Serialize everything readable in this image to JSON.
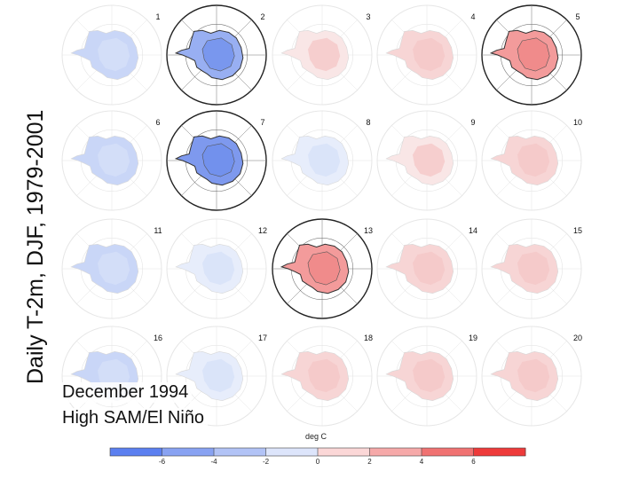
{
  "side_title": "Daily T-2m, DJF, 1979-2001",
  "caption": {
    "line1": "December 1994",
    "line2": "High SAM/El Niño"
  },
  "panels": [
    {
      "label": "1",
      "anom": -1.5,
      "highlight": false
    },
    {
      "label": "2",
      "anom": -3.5,
      "highlight": true
    },
    {
      "label": "3",
      "anom": 0.6,
      "highlight": false
    },
    {
      "label": "4",
      "anom": 1.2,
      "highlight": false
    },
    {
      "label": "5",
      "anom": 4.0,
      "highlight": true
    },
    {
      "label": "6",
      "anom": -1.4,
      "highlight": false
    },
    {
      "label": "7",
      "anom": -4.5,
      "highlight": true
    },
    {
      "label": "8",
      "anom": -0.6,
      "highlight": false
    },
    {
      "label": "9",
      "anom": 0.9,
      "highlight": false
    },
    {
      "label": "10",
      "anom": 1.3,
      "highlight": false
    },
    {
      "label": "11",
      "anom": -1.2,
      "highlight": false
    },
    {
      "label": "12",
      "anom": -0.5,
      "highlight": false
    },
    {
      "label": "13",
      "anom": 4.2,
      "highlight": true
    },
    {
      "label": "14",
      "anom": 1.0,
      "highlight": false
    },
    {
      "label": "15",
      "anom": 1.4,
      "highlight": false
    },
    {
      "label": "16",
      "anom": -1.5,
      "highlight": false
    },
    {
      "label": "17",
      "anom": -0.8,
      "highlight": false
    },
    {
      "label": "18",
      "anom": 1.0,
      "highlight": false
    },
    {
      "label": "19",
      "anom": 1.1,
      "highlight": false
    },
    {
      "label": "20",
      "anom": 1.6,
      "highlight": false
    }
  ],
  "colorbar": {
    "unit": "deg C",
    "ticks": [
      "-6",
      "-4",
      "-2",
      "0",
      "2",
      "4",
      "6"
    ],
    "colors": [
      "#5b7ff0",
      "#88a2f2",
      "#b2c3f6",
      "#dde5fb",
      "#fbd7d7",
      "#f6a9a9",
      "#f07272",
      "#ee3a3a"
    ]
  }
}
